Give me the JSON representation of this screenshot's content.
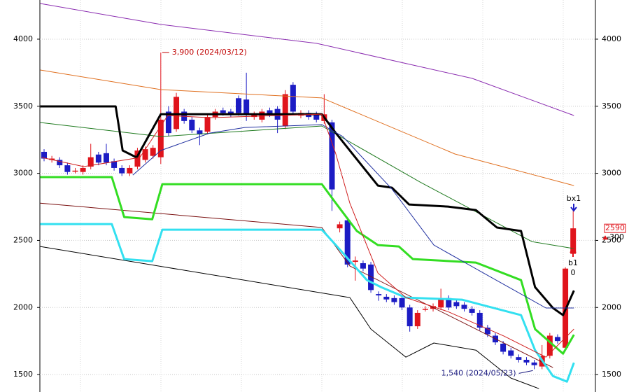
{
  "chart_data": {
    "type": "candlestick",
    "ylim": [
      1370,
      4292
    ],
    "xlim": [
      -0.54,
      70.86
    ],
    "yticks": [
      1500,
      2000,
      2500,
      3000,
      3500,
      4000
    ],
    "grid": true,
    "up_color": "#e0141c",
    "down_color": "#1c1cc4",
    "candles": {
      "open": [
        3160,
        3100,
        3100,
        3060,
        3020,
        3010,
        3050,
        3140,
        3150,
        3090,
        3040,
        3000,
        3050,
        3100,
        3130,
        3120,
        3460,
        3330,
        3460,
        3400,
        3320,
        3310,
        3420,
        3470,
        3460,
        3560,
        3550,
        3420,
        3400,
        3470,
        3480,
        3350,
        3660,
        3430,
        3450,
        3440,
        3390,
        3380,
        2590,
        2650,
        2340,
        2330,
        2320,
        2100,
        2080,
        2070,
        2070,
        2000,
        1860,
        1985,
        1990,
        2000,
        2070,
        2040,
        2020,
        1990,
        1960,
        1850,
        1790,
        1730,
        1680,
        1630,
        1610,
        1590,
        1560,
        1640,
        1780,
        1700,
        2400
      ],
      "high": [
        3180,
        3130,
        3120,
        3080,
        3040,
        3060,
        3220,
        3160,
        3220,
        3110,
        3060,
        3060,
        3190,
        3200,
        3210,
        3900,
        3500,
        3600,
        3480,
        3420,
        3340,
        3440,
        3480,
        3490,
        3480,
        3580,
        3750,
        3460,
        3480,
        3490,
        3500,
        3620,
        3680,
        3470,
        3470,
        3460,
        3590,
        3400,
        2640,
        2660,
        2380,
        2350,
        2340,
        2120,
        2100,
        2090,
        2090,
        2020,
        1980,
        2010,
        2030,
        2140,
        2090,
        2060,
        2040,
        2010,
        1980,
        1870,
        1810,
        1750,
        1700,
        1650,
        1630,
        1610,
        1720,
        1810,
        1800,
        2300,
        2720
      ],
      "low": [
        3090,
        3080,
        3040,
        2990,
        3000,
        2990,
        3030,
        3060,
        3060,
        3020,
        2980,
        2980,
        3030,
        3080,
        3110,
        3070,
        3280,
        3310,
        3370,
        3300,
        3210,
        3290,
        3400,
        3430,
        3420,
        3430,
        3390,
        3400,
        3380,
        3420,
        3300,
        3330,
        3440,
        3410,
        3400,
        3380,
        3370,
        2720,
        2560,
        2300,
        2200,
        2270,
        2110,
        2050,
        2040,
        2020,
        1980,
        1820,
        1840,
        1970,
        1970,
        1980,
        1980,
        1990,
        1970,
        1940,
        1830,
        1780,
        1720,
        1650,
        1620,
        1590,
        1570,
        1540,
        1540,
        1620,
        1730,
        1680,
        2380
      ],
      "close": [
        3110,
        3110,
        3060,
        3010,
        3020,
        3040,
        3120,
        3080,
        3080,
        3040,
        3000,
        3040,
        3170,
        3180,
        3190,
        3400,
        3300,
        3570,
        3390,
        3320,
        3290,
        3420,
        3460,
        3450,
        3440,
        3450,
        3440,
        3440,
        3460,
        3440,
        3400,
        3590,
        3460,
        3450,
        3420,
        3400,
        3440,
        2880,
        2620,
        2320,
        2350,
        2290,
        2130,
        2090,
        2060,
        2040,
        2000,
        1860,
        1960,
        1990,
        2010,
        2060,
        2000,
        2010,
        1990,
        1960,
        1850,
        1800,
        1740,
        1670,
        1640,
        1610,
        1590,
        1570,
        1640,
        1790,
        1750,
        2290,
        2590
      ]
    },
    "lines": [
      {
        "color": "#8a2cb0",
        "width": 1,
        "x": [
          -0.5,
          15.0,
          35.0,
          55.0,
          68.1
        ],
        "values": [
          4266,
          4110,
          3969,
          3708,
          3431
        ]
      },
      {
        "color": "#e07020",
        "width": 1,
        "x": [
          -0.5,
          15.0,
          35.7,
          52.8,
          68.1
        ],
        "values": [
          3770,
          3624,
          3562,
          3144,
          2909
        ]
      },
      {
        "color": "#1f7a1f",
        "width": 1,
        "x": [
          -0.5,
          15.0,
          35.7,
          48.3,
          62.7,
          68.1
        ],
        "values": [
          3379,
          3274,
          3353,
          2936,
          2491,
          2439
        ]
      },
      {
        "color": "#7a1010",
        "width": 1,
        "x": [
          -0.5,
          35.7,
          39.3,
          55.5,
          65.4
        ],
        "values": [
          2778,
          2596,
          2309,
          1839,
          1552
        ]
      },
      {
        "color": "#000000",
        "width": 1,
        "x": [
          -0.5,
          39.3,
          42.0,
          46.5,
          50.1,
          55.5,
          60.0,
          63.6
        ],
        "values": [
          2455,
          2074,
          1839,
          1630,
          1735,
          1682,
          1474,
          1395
        ]
      },
      {
        "color": "#000000",
        "width": 3,
        "x": [
          -0.5,
          9.2,
          10.1,
          11.9,
          15.0,
          35.7,
          37.5,
          42.9,
          44.7,
          46.9,
          51.9,
          55.5,
          58.2,
          61.3,
          63.1,
          65.4,
          66.7,
          68.1
        ],
        "values": [
          3499,
          3499,
          3170,
          3118,
          3441,
          3441,
          3300,
          2909,
          2893,
          2768,
          2752,
          2726,
          2596,
          2570,
          2152,
          1996,
          1943,
          2126
        ]
      },
      {
        "color": "#33dd22",
        "width": 3,
        "x": [
          -0.5,
          8.7,
          10.3,
          13.9,
          15.2,
          35.7,
          37.5,
          40.2,
          42.9,
          45.6,
          47.4,
          55.5,
          61.3,
          63.1,
          66.7,
          68.1
        ],
        "values": [
          2972,
          2972,
          2674,
          2658,
          2919,
          2919,
          2778,
          2570,
          2465,
          2455,
          2361,
          2335,
          2204,
          1839,
          1656,
          1797
        ]
      },
      {
        "color": "#33e0f0",
        "width": 3,
        "x": [
          -0.5,
          8.7,
          10.3,
          13.9,
          15.2,
          35.7,
          37.5,
          41.5,
          43.3,
          46.5,
          53.7,
          61.3,
          63.1,
          65.4,
          67.2,
          68.1
        ],
        "values": [
          2622,
          2622,
          2361,
          2345,
          2580,
          2580,
          2465,
          2204,
          2152,
          2074,
          2058,
          1943,
          1682,
          1489,
          1447,
          1588
        ]
      },
      {
        "color": "#2030a0",
        "width": 1,
        "x": [
          11.4,
          15.0,
          21.3,
          25.8,
          35.7,
          38.4,
          44.7,
          50.1,
          57.3,
          64.5,
          68.1
        ],
        "values": [
          2987,
          3170,
          3300,
          3342,
          3363,
          3274,
          2883,
          2465,
          2230,
          1996,
          1996
        ]
      },
      {
        "color": "#d02020",
        "width": 1,
        "x": [
          -0.3,
          5.1,
          12.3,
          15.9,
          21.3,
          35.7,
          37.5,
          39.3,
          42.9,
          46.5,
          51.9,
          59.1,
          64.5,
          68.1
        ],
        "values": [
          3118,
          3050,
          3118,
          3431,
          3415,
          3441,
          3144,
          2778,
          2257,
          2074,
          1969,
          1787,
          1630,
          1839
        ]
      }
    ],
    "high_label": {
      "text": "3,900 (2024/03/12)",
      "x": 15,
      "y": 3900
    },
    "low_label": {
      "text": "1,540 (2024/05/23)",
      "x": 63,
      "y": 1540
    },
    "signals": [
      "bx1",
      "b1",
      "0"
    ],
    "last_price": 2590,
    "change": 300
  }
}
